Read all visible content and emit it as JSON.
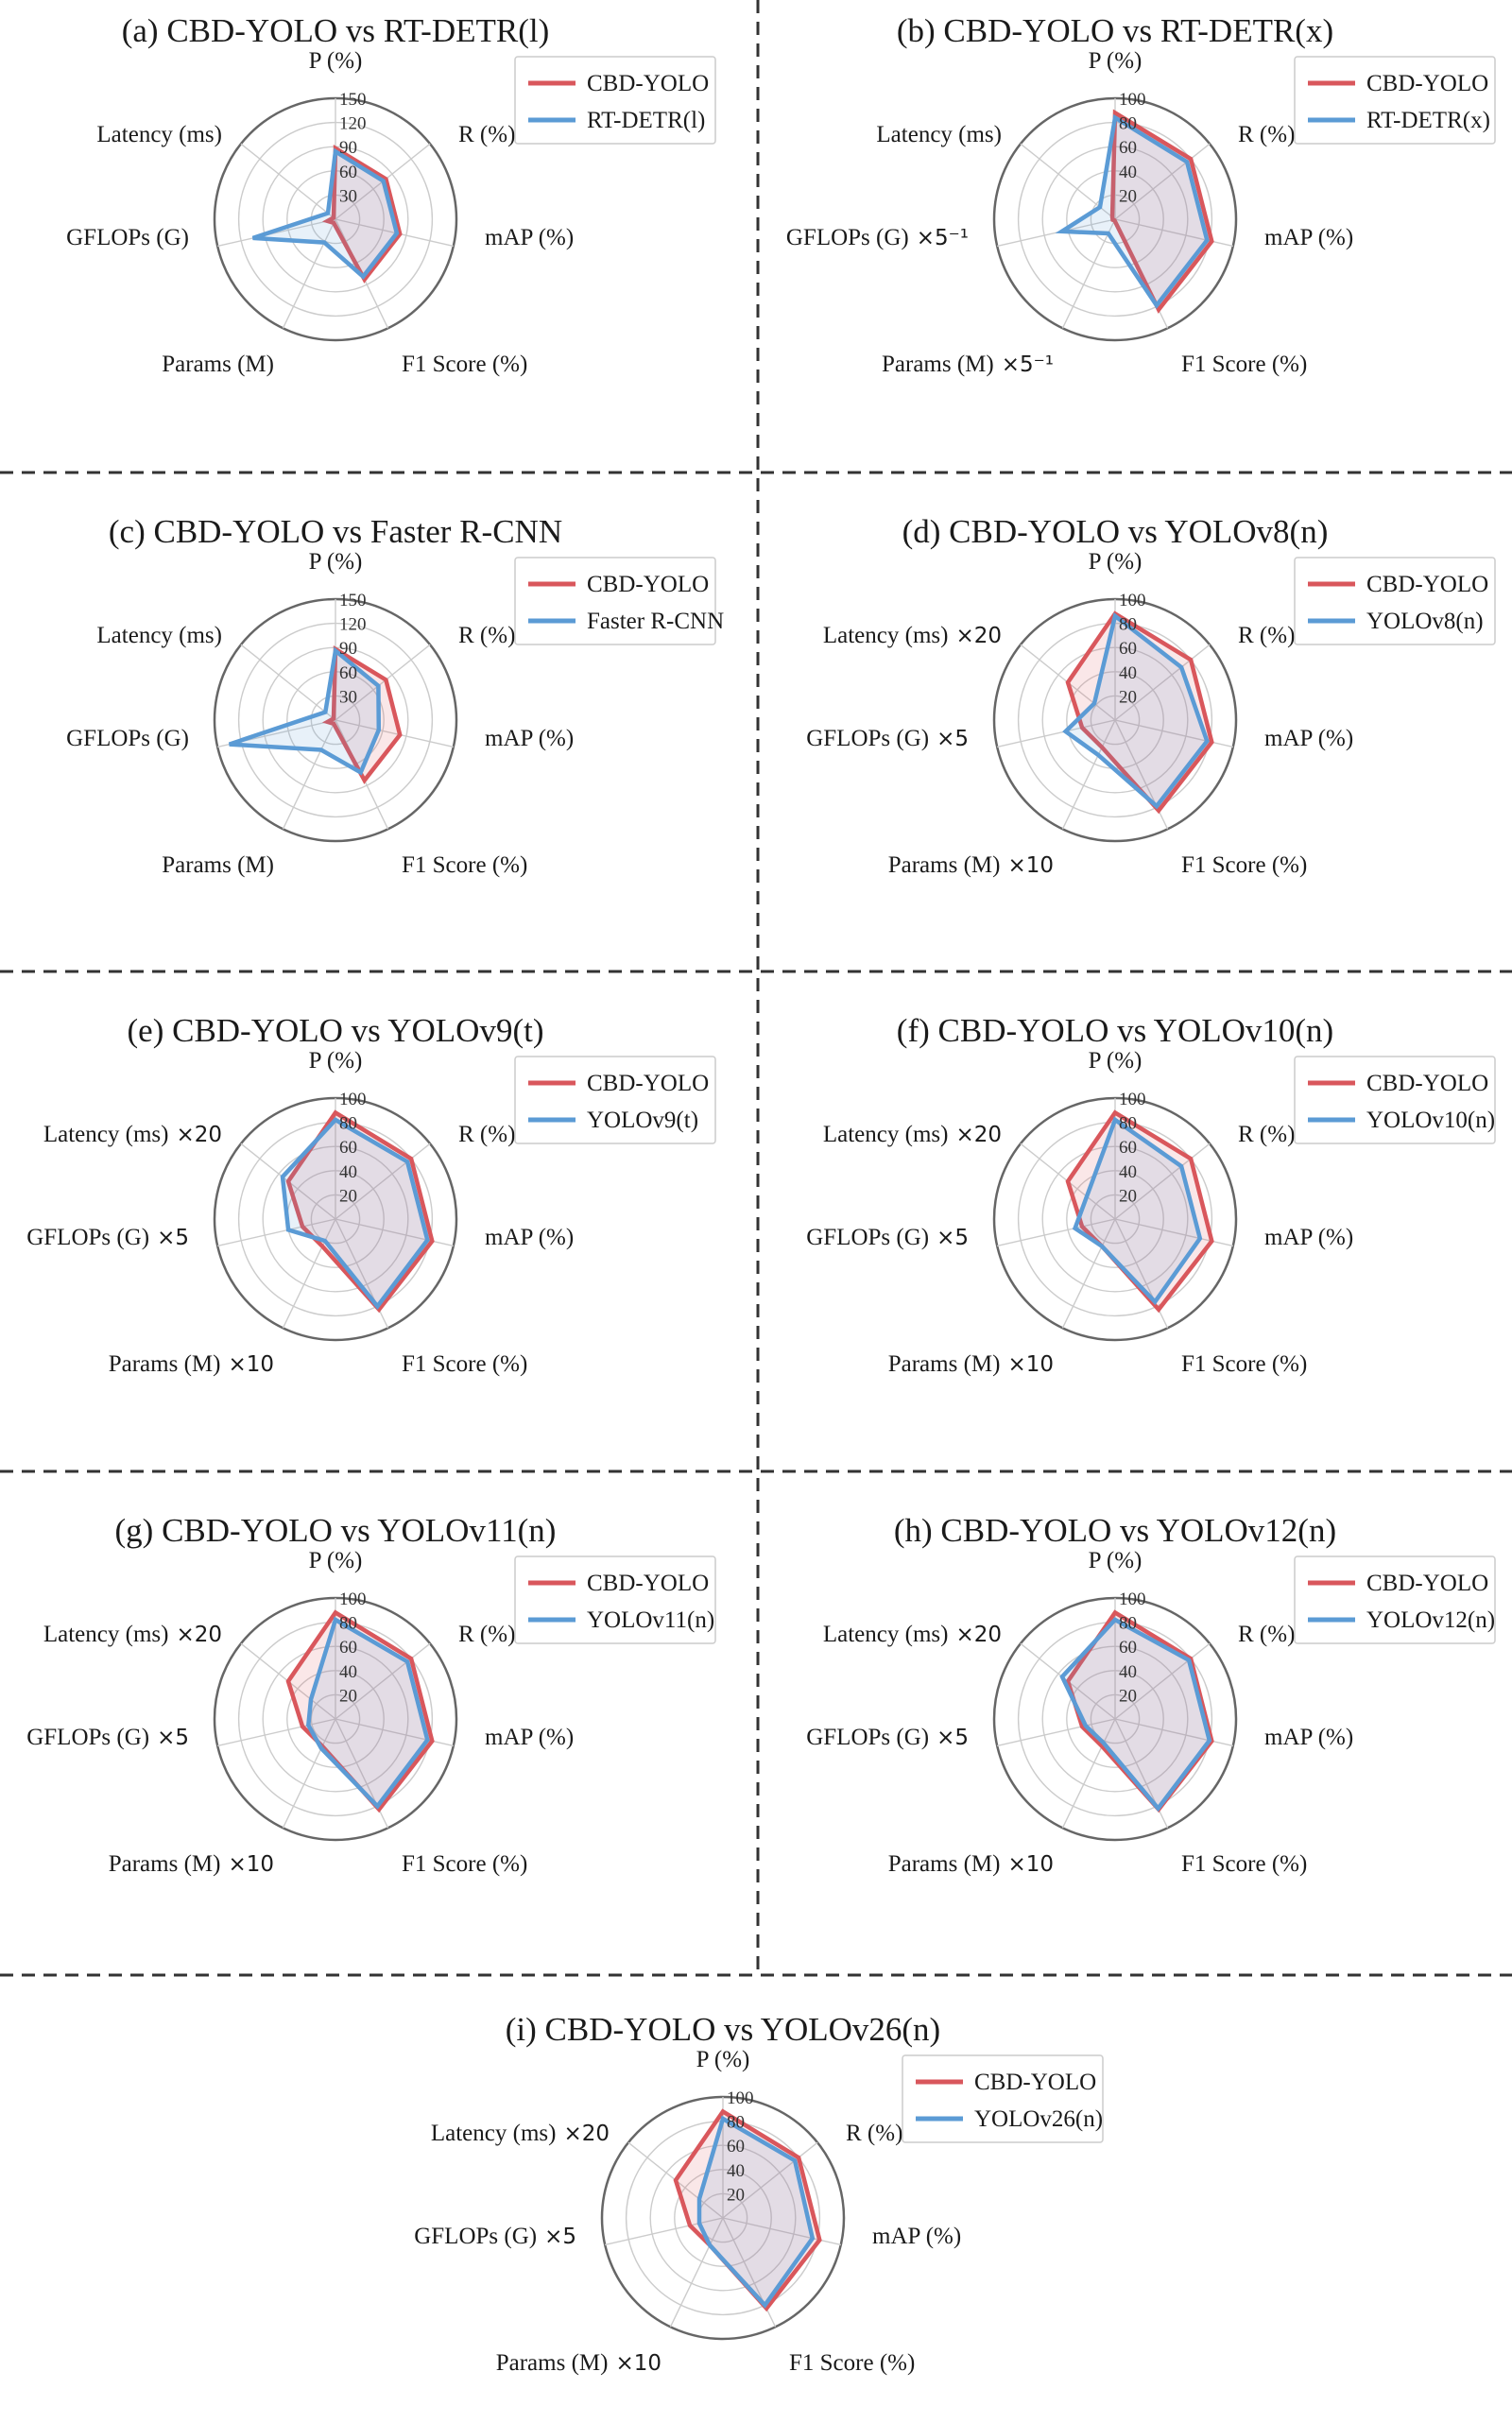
{
  "colors": {
    "primary": "#d9575c",
    "secondary": "#5b9bd5",
    "grid": "#cccccc",
    "frame": "#666666"
  },
  "chart_data": [
    {
      "type": "radar",
      "panel": "a",
      "title": "(a) CBD-YOLO vs RT-DETR(l)",
      "axes": [
        "P (%)",
        "R (%)",
        "mAP (%)",
        "F1 Score (%)",
        "Params (M)",
        "GFLOPs (G)",
        "Latency (ms)"
      ],
      "axis_multipliers": [
        "",
        "",
        "",
        "",
        "",
        "",
        ""
      ],
      "rmax": 150,
      "ticks": [
        30,
        60,
        90,
        120,
        150
      ],
      "tick_labels": [
        "30",
        "60",
        "90",
        "120",
        "150"
      ],
      "series": [
        {
          "name": "CBD-YOLO",
          "values": [
            88,
            80,
            82,
            83,
            5,
            10,
            3
          ]
        },
        {
          "name": "RT-DETR(l)",
          "values": [
            84,
            76,
            78,
            79,
            32,
            105,
            12
          ]
        }
      ]
    },
    {
      "type": "radar",
      "panel": "b",
      "title": "(b) CBD-YOLO vs RT-DETR(x)",
      "axes": [
        "P (%)",
        "R (%)",
        "mAP (%)",
        "F1 Score (%)",
        "Params (M)",
        "GFLOPs (G)",
        "Latency (ms)"
      ],
      "axis_multipliers": [
        "",
        "",
        "",
        "",
        "×5⁻¹",
        "×5⁻¹",
        ""
      ],
      "rmax": 100,
      "ticks": [
        20,
        40,
        60,
        80,
        100
      ],
      "tick_labels": [
        "20",
        "40",
        "60",
        "80",
        "100"
      ],
      "series": [
        {
          "name": "CBD-YOLO",
          "values": [
            88,
            80,
            82,
            83,
            1,
            2,
            3
          ]
        },
        {
          "name": "RT-DETR(x)",
          "values": [
            84,
            76,
            78,
            79,
            13,
            45,
            16
          ]
        }
      ]
    },
    {
      "type": "radar",
      "panel": "c",
      "title": "(c) CBD-YOLO vs Faster R-CNN",
      "axes": [
        "P (%)",
        "R (%)",
        "mAP (%)",
        "F1 Score (%)",
        "Params (M)",
        "GFLOPs (G)",
        "Latency (ms)"
      ],
      "axis_multipliers": [
        "",
        "",
        "",
        "",
        "",
        "",
        ""
      ],
      "rmax": 150,
      "ticks": [
        30,
        60,
        90,
        120,
        150
      ],
      "tick_labels": [
        "30",
        "60",
        "90",
        "120",
        "150"
      ],
      "series": [
        {
          "name": "CBD-YOLO",
          "values": [
            88,
            80,
            82,
            83,
            5,
            10,
            3
          ]
        },
        {
          "name": "Faster R-CNN",
          "values": [
            86,
            68,
            55,
            72,
            41,
            135,
            16
          ]
        }
      ]
    },
    {
      "type": "radar",
      "panel": "d",
      "title": "(d) CBD-YOLO vs YOLOv8(n)",
      "axes": [
        "P (%)",
        "R (%)",
        "mAP (%)",
        "F1 Score (%)",
        "Params (M)",
        "GFLOPs (G)",
        "Latency (ms)"
      ],
      "axis_multipliers": [
        "",
        "",
        "",
        "",
        "×10",
        "×5",
        "×20"
      ],
      "rmax": 100,
      "ticks": [
        20,
        40,
        60,
        80,
        100
      ],
      "tick_labels": [
        "20",
        "40",
        "60",
        "80",
        "100"
      ],
      "series": [
        {
          "name": "CBD-YOLO",
          "values": [
            88,
            80,
            82,
            83,
            25,
            28,
            50
          ]
        },
        {
          "name": "YOLOv8(n)",
          "values": [
            86,
            70,
            78,
            79,
            32,
            42,
            22
          ]
        }
      ]
    },
    {
      "type": "radar",
      "panel": "e",
      "title": "(e) CBD-YOLO vs YOLOv9(t)",
      "axes": [
        "P (%)",
        "R (%)",
        "mAP (%)",
        "F1 Score (%)",
        "Params (M)",
        "GFLOPs (G)",
        "Latency (ms)"
      ],
      "axis_multipliers": [
        "",
        "",
        "",
        "",
        "×10",
        "×5",
        "×20"
      ],
      "rmax": 100,
      "ticks": [
        20,
        40,
        60,
        80,
        100
      ],
      "tick_labels": [
        "20",
        "40",
        "60",
        "80",
        "100"
      ],
      "series": [
        {
          "name": "CBD-YOLO",
          "values": [
            88,
            80,
            82,
            83,
            25,
            28,
            50
          ]
        },
        {
          "name": "YOLOv9(t)",
          "values": [
            82,
            76,
            78,
            80,
            20,
            40,
            56
          ]
        }
      ]
    },
    {
      "type": "radar",
      "panel": "f",
      "title": "(f) CBD-YOLO vs YOLOv10(n)",
      "axes": [
        "P (%)",
        "R (%)",
        "mAP (%)",
        "F1 Score (%)",
        "Params (M)",
        "GFLOPs (G)",
        "Latency (ms)"
      ],
      "axis_multipliers": [
        "",
        "",
        "",
        "",
        "×10",
        "×5",
        "×20"
      ],
      "rmax": 100,
      "ticks": [
        20,
        40,
        60,
        80,
        100
      ],
      "tick_labels": [
        "20",
        "40",
        "60",
        "80",
        "100"
      ],
      "series": [
        {
          "name": "CBD-YOLO",
          "values": [
            88,
            80,
            82,
            83,
            25,
            28,
            50
          ]
        },
        {
          "name": "YOLOv10(n)",
          "values": [
            82,
            70,
            72,
            76,
            25,
            34,
            30
          ]
        }
      ]
    },
    {
      "type": "radar",
      "panel": "g",
      "title": "(g) CBD-YOLO vs YOLOv11(n)",
      "axes": [
        "P (%)",
        "R (%)",
        "mAP (%)",
        "F1 Score (%)",
        "Params (M)",
        "GFLOPs (G)",
        "Latency (ms)"
      ],
      "axis_multipliers": [
        "",
        "",
        "",
        "",
        "×10",
        "×5",
        "×20"
      ],
      "rmax": 100,
      "ticks": [
        20,
        40,
        60,
        80,
        100
      ],
      "tick_labels": [
        "20",
        "40",
        "60",
        "80",
        "100"
      ],
      "series": [
        {
          "name": "CBD-YOLO",
          "values": [
            88,
            80,
            82,
            83,
            25,
            28,
            50
          ]
        },
        {
          "name": "YOLOv11(n)",
          "values": [
            82,
            76,
            78,
            80,
            27,
            23,
            26
          ]
        }
      ]
    },
    {
      "type": "radar",
      "panel": "h",
      "title": "(h) CBD-YOLO vs YOLOv12(n)",
      "axes": [
        "P (%)",
        "R (%)",
        "mAP (%)",
        "F1 Score (%)",
        "Params (M)",
        "GFLOPs (G)",
        "Latency (ms)"
      ],
      "axis_multipliers": [
        "",
        "",
        "",
        "",
        "×10",
        "×5",
        "×20"
      ],
      "rmax": 100,
      "ticks": [
        20,
        40,
        60,
        80,
        100
      ],
      "tick_labels": [
        "20",
        "40",
        "60",
        "80",
        "100"
      ],
      "series": [
        {
          "name": "CBD-YOLO",
          "values": [
            88,
            80,
            82,
            83,
            25,
            28,
            50
          ]
        },
        {
          "name": "YOLOv12(n)",
          "values": [
            82,
            78,
            80,
            82,
            22,
            25,
            56
          ]
        }
      ]
    },
    {
      "type": "radar",
      "panel": "i",
      "title": "(i) CBD-YOLO vs YOLOv26(n)",
      "axes": [
        "P (%)",
        "R (%)",
        "mAP (%)",
        "F1 Score (%)",
        "Params (M)",
        "GFLOPs (G)",
        "Latency (ms)"
      ],
      "axis_multipliers": [
        "",
        "",
        "",
        "",
        "×10",
        "×5",
        "×20"
      ],
      "rmax": 100,
      "ticks": [
        20,
        40,
        60,
        80,
        100
      ],
      "tick_labels": [
        "20",
        "40",
        "60",
        "80",
        "100"
      ],
      "series": [
        {
          "name": "CBD-YOLO",
          "values": [
            88,
            80,
            82,
            83,
            25,
            28,
            50
          ]
        },
        {
          "name": "YOLOv26(n)",
          "values": [
            82,
            76,
            76,
            80,
            25,
            20,
            25
          ]
        }
      ]
    }
  ]
}
